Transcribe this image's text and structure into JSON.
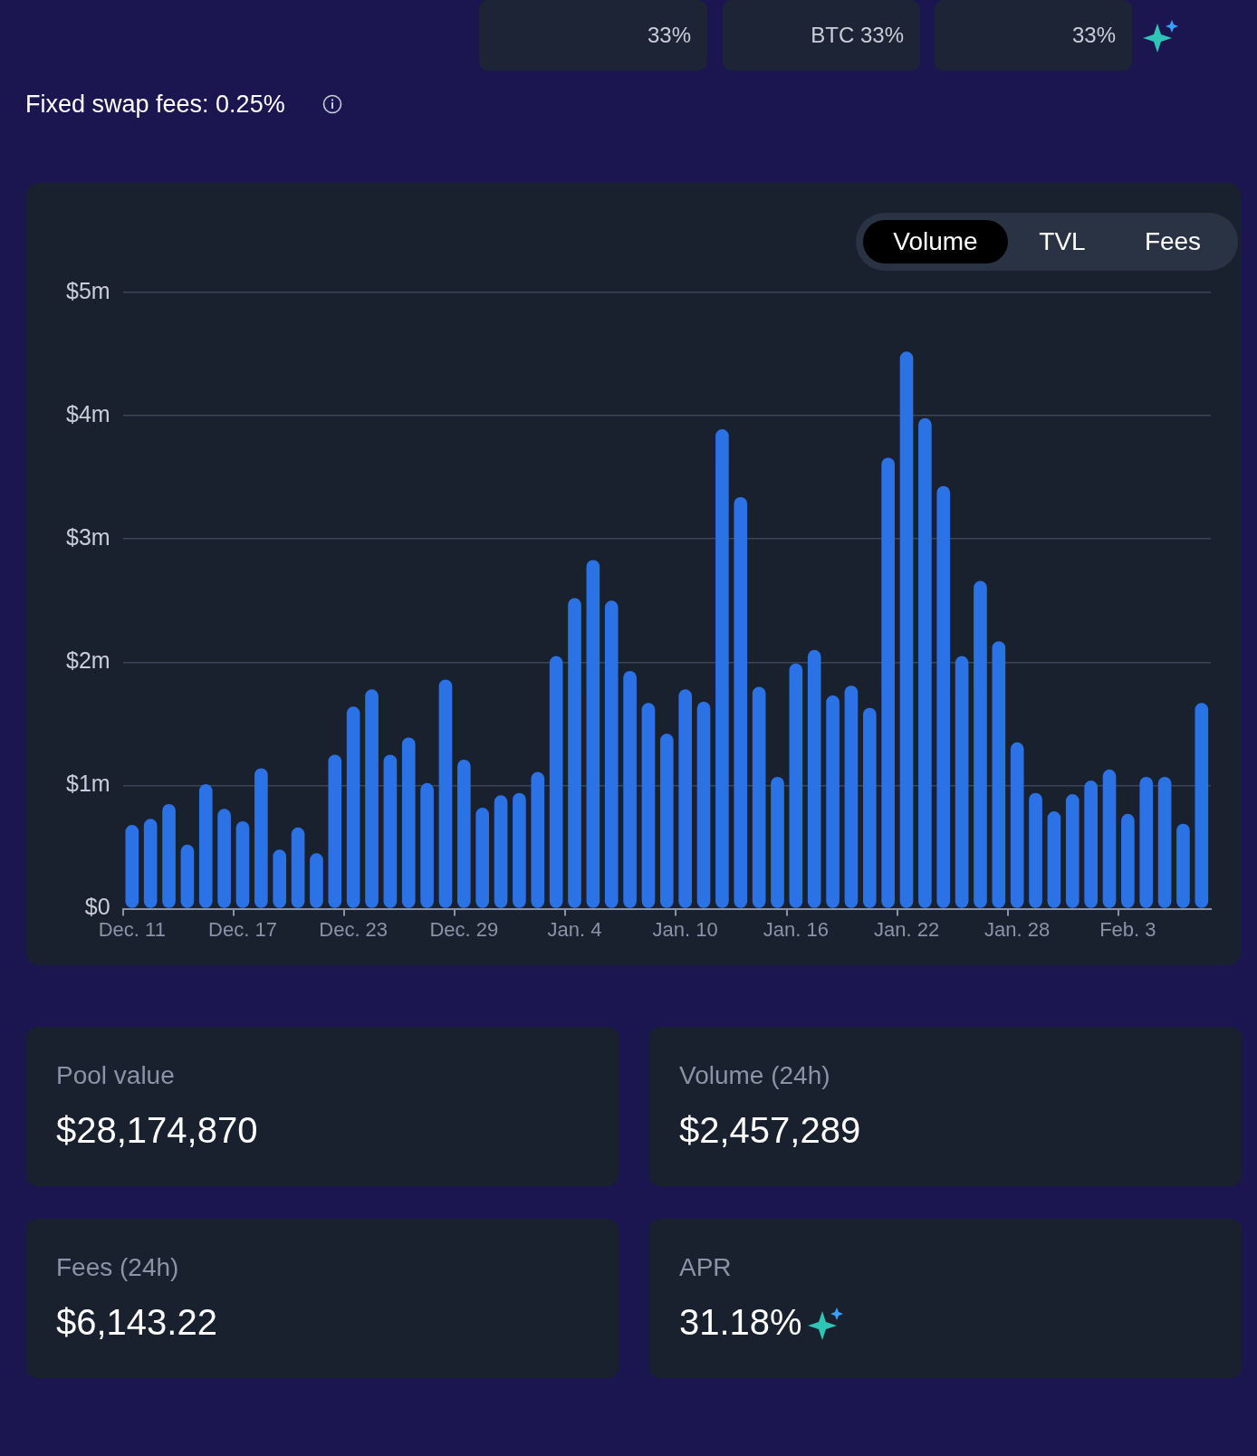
{
  "chart_data": {
    "type": "bar",
    "categories": [
      "Dec. 11",
      null,
      null,
      null,
      null,
      null,
      "Dec. 17",
      null,
      null,
      null,
      null,
      null,
      "Dec. 23",
      null,
      null,
      null,
      null,
      null,
      "Dec. 29",
      null,
      null,
      null,
      null,
      null,
      "Jan. 4",
      null,
      null,
      null,
      null,
      null,
      "Jan. 10",
      null,
      null,
      null,
      null,
      null,
      "Jan. 16",
      null,
      null,
      null,
      null,
      null,
      "Jan. 22",
      null,
      null,
      null,
      null,
      null,
      "Jan. 28",
      null,
      null,
      null,
      null,
      null,
      "Feb. 3",
      null,
      null,
      null,
      null
    ],
    "series": [
      {
        "color": "#2b72e6",
        "values": [
          0.68,
          0.73,
          0.85,
          0.52,
          1.01,
          0.81,
          0.71,
          1.14,
          0.48,
          0.66,
          0.45,
          1.25,
          1.64,
          1.78,
          1.25,
          1.39,
          1.02,
          1.86,
          1.21,
          0.82,
          0.92,
          0.94,
          1.11,
          2.05,
          2.52,
          2.83,
          2.5,
          1.93,
          1.67,
          1.42,
          1.78,
          1.68,
          3.89,
          3.34,
          1.8,
          1.07,
          1.99,
          2.1,
          1.73,
          1.81,
          1.63,
          3.66,
          4.52,
          3.98,
          3.43,
          2.05,
          2.66,
          2.17,
          1.35,
          0.94,
          0.79,
          0.93,
          1.04,
          1.13,
          0.77,
          1.07,
          1.07,
          0.69,
          1.67
        ]
      }
    ],
    "ylim": [
      0,
      5
    ],
    "yticks": [
      {
        "value": 0,
        "label": "$0"
      },
      {
        "value": 1,
        "label": "$1m"
      },
      {
        "value": 2,
        "label": "$2m"
      },
      {
        "value": 3,
        "label": "$3m"
      },
      {
        "value": 4,
        "label": "$4m"
      },
      {
        "value": 5,
        "label": "$5m"
      }
    ],
    "grid": "y",
    "annotations": [
      "33%",
      "BTC 33%",
      "33%",
      "Fixed swap fees: 0.25%",
      "Volume",
      "TVL",
      "Fees",
      "Pool value",
      "$28,174,870",
      "Volume (24h)",
      "$2,457,289",
      "Fees (24h)",
      "$6,143.22",
      "APR",
      "31.18%"
    ]
  }
}
